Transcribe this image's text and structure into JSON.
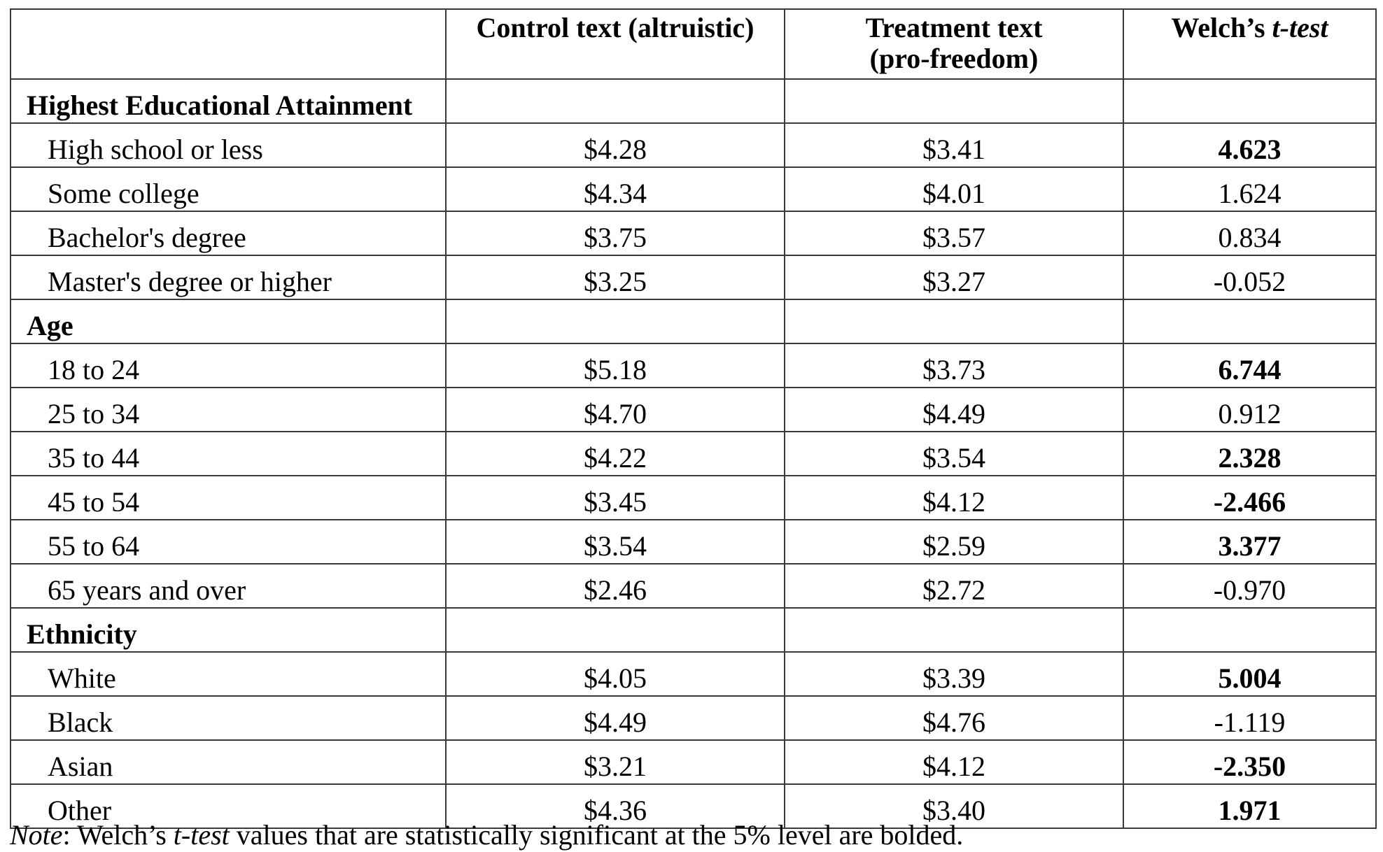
{
  "headers": {
    "col0": "",
    "control_line1": "Control text (altruistic)",
    "treatment_line1": "Treatment text",
    "treatment_line2": "(pro-freedom)",
    "welch_prefix": "Welch’s ",
    "welch_italic": "t-test"
  },
  "rows": [
    {
      "type": "section",
      "label": "Highest Educational Attainment"
    },
    {
      "type": "data",
      "label": "High school or less",
      "control": "$4.28",
      "treatment": "$3.41",
      "t": "4.623",
      "significant": true
    },
    {
      "type": "data",
      "label": "Some college",
      "control": "$4.34",
      "treatment": "$4.01",
      "t": "1.624",
      "significant": false
    },
    {
      "type": "data",
      "label": "Bachelor's degree",
      "control": "$3.75",
      "treatment": "$3.57",
      "t": "0.834",
      "significant": false
    },
    {
      "type": "data",
      "label": "Master's degree or higher",
      "control": "$3.25",
      "treatment": "$3.27",
      "t": "-0.052",
      "significant": false
    },
    {
      "type": "section",
      "label": "Age"
    },
    {
      "type": "data",
      "label": "18 to 24",
      "control": "$5.18",
      "treatment": "$3.73",
      "t": "6.744",
      "significant": true
    },
    {
      "type": "data",
      "label": "25 to 34",
      "control": "$4.70",
      "treatment": "$4.49",
      "t": "0.912",
      "significant": false
    },
    {
      "type": "data",
      "label": "35 to 44",
      "control": "$4.22",
      "treatment": "$3.54",
      "t": "2.328",
      "significant": true
    },
    {
      "type": "data",
      "label": "45 to 54",
      "control": "$3.45",
      "treatment": "$4.12",
      "t": "-2.466",
      "significant": true
    },
    {
      "type": "data",
      "label": "55 to 64",
      "control": "$3.54",
      "treatment": "$2.59",
      "t": "3.377",
      "significant": true
    },
    {
      "type": "data",
      "label": "65 years and over",
      "control": "$2.46",
      "treatment": "$2.72",
      "t": "-0.970",
      "significant": false
    },
    {
      "type": "section",
      "label": "Ethnicity"
    },
    {
      "type": "data",
      "label": "White",
      "control": "$4.05",
      "treatment": "$3.39",
      "t": "5.004",
      "significant": true
    },
    {
      "type": "data",
      "label": "Black",
      "control": "$4.49",
      "treatment": "$4.76",
      "t": "-1.119",
      "significant": false
    },
    {
      "type": "data",
      "label": "Asian",
      "control": "$3.21",
      "treatment": "$4.12",
      "t": "-2.350",
      "significant": true
    },
    {
      "type": "data",
      "label": "Other",
      "control": "$4.36",
      "treatment": "$3.40",
      "t": "1.971",
      "significant": true
    }
  ],
  "note": {
    "label": "Note",
    "sep": ": Welch’s ",
    "italic": "t-test",
    "rest": " values that are statistically significant at the 5% level are bolded."
  }
}
